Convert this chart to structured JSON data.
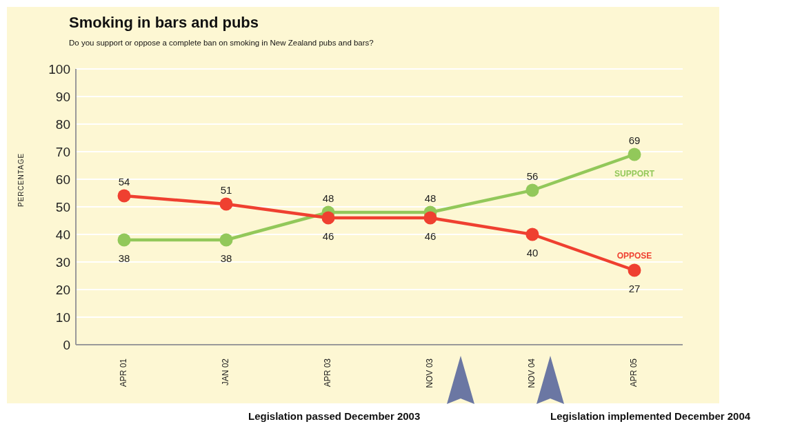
{
  "chart_data": {
    "type": "line",
    "title": "Smoking in bars and pubs",
    "subtitle": "Do you support or oppose a complete ban on smoking in New Zealand pubs and bars?",
    "ylabel": "PERCENTAGE",
    "categories": [
      "APR 01",
      "JAN 02",
      "APR 03",
      "NOV 03",
      "NOV 04",
      "APR 05"
    ],
    "series": [
      {
        "name": "SUPPORT",
        "color": "#92c85a",
        "values": [
          38,
          38,
          48,
          48,
          56,
          69
        ]
      },
      {
        "name": "OPPOSE",
        "color": "#ef4030",
        "values": [
          54,
          51,
          46,
          46,
          40,
          27
        ]
      }
    ],
    "ylim": [
      0,
      100
    ],
    "yticks": [
      0,
      10,
      20,
      30,
      40,
      50,
      60,
      70,
      80,
      90,
      100
    ],
    "grid": "y",
    "legend": false,
    "data_labels": true,
    "marker": "circle",
    "line_style": "solid",
    "annotations": [
      "Legislation passed December 2003",
      "Legislation implemented December 2004"
    ]
  }
}
